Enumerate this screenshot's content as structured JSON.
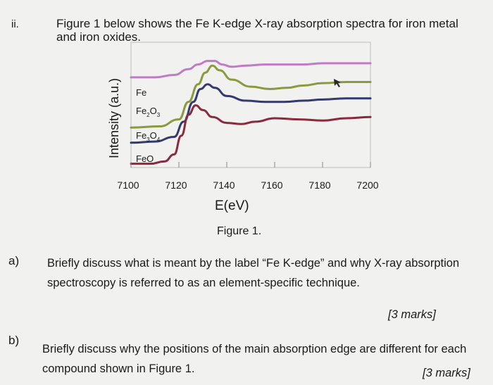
{
  "header": {
    "number": "ii.",
    "intro": "Figure 1 below shows the Fe K-edge X-ray absorption spectra for iron metal and iron oxides."
  },
  "figure": {
    "caption": "Figure 1."
  },
  "chart_data": {
    "type": "line",
    "xlabel": "E(eV)",
    "ylabel": "Intensity (a.u.)",
    "xlim": [
      7100,
      7200
    ],
    "xticks": [
      "7100",
      "7120",
      "7140",
      "7160",
      "7180",
      "7200"
    ],
    "grid": false,
    "legend_placement": "inside-left",
    "series": [
      {
        "name": "Fe",
        "color": "#c07ac6",
        "x": [
          7100,
          7110,
          7118,
          7124,
          7128,
          7132,
          7135,
          7138,
          7142,
          7148,
          7156,
          7164,
          7172,
          7180,
          7190,
          7200
        ],
        "y": [
          0.76,
          0.76,
          0.78,
          0.83,
          0.87,
          0.9,
          0.9,
          0.87,
          0.85,
          0.86,
          0.87,
          0.87,
          0.87,
          0.88,
          0.88,
          0.88
        ]
      },
      {
        "name": "Fe2O3",
        "color": "#8a9a3e",
        "x": [
          7100,
          7112,
          7120,
          7124,
          7128,
          7131,
          7134,
          7137,
          7142,
          7150,
          7158,
          7165,
          7172,
          7180,
          7190,
          7200
        ],
        "y": [
          0.33,
          0.34,
          0.4,
          0.55,
          0.7,
          0.8,
          0.86,
          0.82,
          0.74,
          0.68,
          0.66,
          0.67,
          0.69,
          0.71,
          0.72,
          0.72
        ]
      },
      {
        "name": "Fe3O4",
        "color": "#333a70",
        "x": [
          7100,
          7110,
          7118,
          7122,
          7126,
          7129,
          7132,
          7135,
          7140,
          7148,
          7156,
          7164,
          7172,
          7180,
          7190,
          7200
        ],
        "y": [
          0.2,
          0.21,
          0.25,
          0.38,
          0.55,
          0.66,
          0.7,
          0.67,
          0.6,
          0.56,
          0.55,
          0.55,
          0.56,
          0.57,
          0.58,
          0.58
        ]
      },
      {
        "name": "FeO",
        "color": "#8b2a3e",
        "x": [
          7100,
          7108,
          7114,
          7118,
          7121,
          7124,
          7127,
          7130,
          7134,
          7140,
          7146,
          7152,
          7160,
          7170,
          7180,
          7190,
          7200
        ],
        "y": [
          0.02,
          0.02,
          0.04,
          0.1,
          0.26,
          0.44,
          0.52,
          0.48,
          0.42,
          0.37,
          0.36,
          0.38,
          0.41,
          0.4,
          0.39,
          0.41,
          0.42
        ]
      }
    ]
  },
  "questions": [
    {
      "letter": "a)",
      "text": "Briefly discuss what is meant by the label “Fe K-edge” and why X-ray absorption spectroscopy is referred to as an element-specific technique.",
      "marks": "[3 marks]"
    },
    {
      "letter": "b)",
      "text": "Briefly discuss why the positions of the main absorption edge are different for each compound shown in Figure 1.",
      "marks": "[3 marks]"
    }
  ]
}
